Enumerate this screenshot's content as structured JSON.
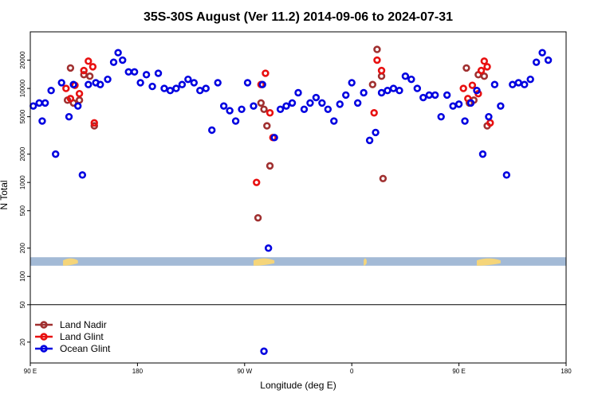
{
  "chart_data": {
    "type": "scatter",
    "title": "35S-30S August (Ver 11.2)   2014-09-06 to 2024-07-31",
    "xlabel": "Longitude (deg E)",
    "ylabel": "N Total",
    "xlim": [
      -270,
      -90
    ],
    "ylim": [
      12,
      40000
    ],
    "yscale": "log",
    "grid": false,
    "legend_position": "bottom-left",
    "x_ticks": [
      {
        "value": -270,
        "label": "90 E"
      },
      {
        "value": -234,
        "label": "180"
      },
      {
        "value": -198,
        "label": "90 W"
      },
      {
        "value": -162,
        "label": "0"
      },
      {
        "value": -126,
        "label": "90 E"
      },
      {
        "value": -90,
        "label": "180"
      }
    ],
    "y_ticks": [
      {
        "value": 20,
        "label": "20"
      },
      {
        "value": 50,
        "label": "50"
      },
      {
        "value": 100,
        "label": "100"
      },
      {
        "value": 200,
        "label": "200"
      },
      {
        "value": 500,
        "label": "500"
      },
      {
        "value": 1000,
        "label": "1000"
      },
      {
        "value": 2000,
        "label": "2000"
      },
      {
        "value": 5000,
        "label": "5000"
      },
      {
        "value": 10000,
        "label": "10000"
      },
      {
        "value": 20000,
        "label": "20000"
      }
    ],
    "separator_y": 50,
    "land_band": {
      "y_range": [
        130,
        160
      ],
      "ocean_color": "#a3bad6",
      "land_color": "#f5d57a",
      "land_spans": [
        [
          -259,
          -254
        ],
        [
          -195,
          -188
        ],
        [
          -158,
          -157
        ],
        [
          -120,
          -112
        ]
      ]
    },
    "series": [
      {
        "name": "Land Nadir",
        "color": "#a03030",
        "points": [
          [
            -257.5,
            7500
          ],
          [
            -256.5,
            16500
          ],
          [
            -255.5,
            7000
          ],
          [
            -253.5,
            7500
          ],
          [
            -252,
            14000
          ],
          [
            -250,
            13500
          ],
          [
            -248.5,
            4000
          ],
          [
            -193.5,
            420
          ],
          [
            -192.5,
            7000
          ],
          [
            -191.5,
            6000
          ],
          [
            -190.5,
            4000
          ],
          [
            -189.5,
            1500
          ],
          [
            -155,
            11000
          ],
          [
            -153.5,
            26000
          ],
          [
            -152,
            13500
          ],
          [
            -151.5,
            1100
          ],
          [
            -123.5,
            16500
          ],
          [
            -122.5,
            7000
          ],
          [
            -121,
            7500
          ],
          [
            -119.5,
            14000
          ],
          [
            -117.5,
            13500
          ],
          [
            -116.5,
            4000
          ]
        ]
      },
      {
        "name": "Land Glint",
        "color": "#e81010",
        "points": [
          [
            -258,
            10000
          ],
          [
            -256.5,
            7800
          ],
          [
            -255,
            10800
          ],
          [
            -253.5,
            8800
          ],
          [
            -252,
            15500
          ],
          [
            -250.5,
            19500
          ],
          [
            -249,
            17000
          ],
          [
            -248.5,
            4300
          ],
          [
            -194,
            1000
          ],
          [
            -192.5,
            11000
          ],
          [
            -191,
            14500
          ],
          [
            -189.5,
            5500
          ],
          [
            -188.5,
            3000
          ],
          [
            -154.5,
            5500
          ],
          [
            -153.5,
            20000
          ],
          [
            -152,
            15500
          ],
          [
            -124.5,
            10000
          ],
          [
            -123,
            7800
          ],
          [
            -121.5,
            10800
          ],
          [
            -119.5,
            8800
          ],
          [
            -118.5,
            15500
          ],
          [
            -117.5,
            19500
          ],
          [
            -116.5,
            17000
          ],
          [
            -115.5,
            4300
          ]
        ]
      },
      {
        "name": "Ocean Glint",
        "color": "#0000e0",
        "points": [
          [
            -269,
            6500
          ],
          [
            -267,
            7000
          ],
          [
            -266,
            4500
          ],
          [
            -265,
            7000
          ],
          [
            -263,
            9500
          ],
          [
            -261.5,
            2000
          ],
          [
            -259.5,
            11500
          ],
          [
            -257,
            5000
          ],
          [
            -255.5,
            11000
          ],
          [
            -254,
            6500
          ],
          [
            -252.5,
            1200
          ],
          [
            -250.5,
            11000
          ],
          [
            -248,
            11500
          ],
          [
            -246.5,
            11000
          ],
          [
            -244,
            12500
          ],
          [
            -242,
            19000
          ],
          [
            -240.5,
            24000
          ],
          [
            -239,
            20000
          ],
          [
            -237,
            15000
          ],
          [
            -235,
            15000
          ],
          [
            -233,
            11500
          ],
          [
            -231,
            14000
          ],
          [
            -229,
            10500
          ],
          [
            -227,
            14500
          ],
          [
            -225,
            10000
          ],
          [
            -223,
            9500
          ],
          [
            -221,
            10000
          ],
          [
            -219,
            11000
          ],
          [
            -217,
            12500
          ],
          [
            -215,
            11500
          ],
          [
            -213,
            9500
          ],
          [
            -211,
            10000
          ],
          [
            -209,
            3600
          ],
          [
            -207,
            11500
          ],
          [
            -205,
            6500
          ],
          [
            -203,
            5800
          ],
          [
            -201,
            4500
          ],
          [
            -199,
            6000
          ],
          [
            -197,
            11500
          ],
          [
            -195,
            6500
          ],
          [
            -192,
            11000
          ],
          [
            -190,
            200
          ],
          [
            -188,
            3000
          ],
          [
            -186,
            6000
          ],
          [
            -184,
            6500
          ],
          [
            -182,
            7000
          ],
          [
            -180,
            9000
          ],
          [
            -178,
            6000
          ],
          [
            -176,
            7000
          ],
          [
            -174,
            8000
          ],
          [
            -172,
            7000
          ],
          [
            -170,
            6000
          ],
          [
            -168,
            4500
          ],
          [
            -166,
            6800
          ],
          [
            -164,
            8500
          ],
          [
            -162,
            11500
          ],
          [
            -160,
            7000
          ],
          [
            -158,
            9000
          ],
          [
            -156,
            2800
          ],
          [
            -154,
            3400
          ],
          [
            -152,
            9000
          ],
          [
            -150,
            9500
          ],
          [
            -148,
            10000
          ],
          [
            -146,
            9500
          ],
          [
            -144,
            13500
          ],
          [
            -142,
            12500
          ],
          [
            -140,
            10000
          ],
          [
            -138,
            8000
          ],
          [
            -136,
            8500
          ],
          [
            -134,
            8500
          ],
          [
            -132,
            5000
          ],
          [
            -130,
            8500
          ],
          [
            -128,
            6500
          ],
          [
            -126,
            6800
          ],
          [
            -124,
            4500
          ],
          [
            -122,
            7000
          ],
          [
            -120,
            9500
          ],
          [
            -118,
            2000
          ],
          [
            -116,
            5000
          ],
          [
            -114,
            11000
          ],
          [
            -112,
            6500
          ],
          [
            -110,
            1200
          ],
          [
            -108,
            11000
          ],
          [
            -106,
            11500
          ],
          [
            -104,
            11000
          ],
          [
            -102,
            12500
          ],
          [
            -100,
            19000
          ],
          [
            -98,
            24000
          ],
          [
            -96,
            20000
          ],
          [
            -191.5,
            16
          ]
        ]
      }
    ]
  }
}
